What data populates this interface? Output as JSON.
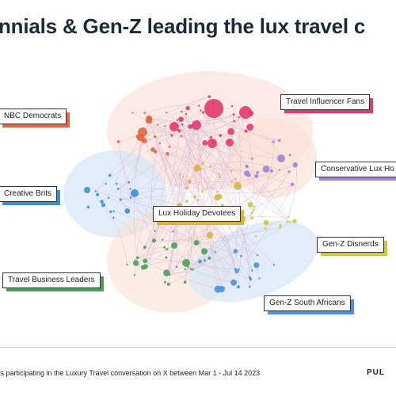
{
  "title": "nnials & Gen-Z leading the lux travel c",
  "footer": {
    "text": "ts participating in the Luxury Travel conversation on X between Mar 1 - Jul 14 2023",
    "brand": "PUL"
  },
  "clusters": [
    {
      "id": "nbc-democrats",
      "label": "NBC Democrats",
      "color": "#e06a43"
    },
    {
      "id": "travel-influencer-fans",
      "label": "Travel Influencer Fans",
      "color": "#e2396d"
    },
    {
      "id": "conservative-lux",
      "label": "Conservative Lux Ho",
      "color": "#9c84d6"
    },
    {
      "id": "creative-brits",
      "label": "Creative Brits",
      "color": "#3a8fd1"
    },
    {
      "id": "lux-holiday-devotees",
      "label": "Lux Holiday Devotees",
      "color": "#d9b33a"
    },
    {
      "id": "gen-z-disnerds",
      "label": "Gen-Z Disnerds",
      "color": "#c9c939"
    },
    {
      "id": "travel-business-leaders",
      "label": "Travel Business Leaders",
      "color": "#4a9e5c"
    },
    {
      "id": "gen-z-south-africans",
      "label": "Gen-Z South Africans",
      "color": "#4a90e2"
    }
  ]
}
